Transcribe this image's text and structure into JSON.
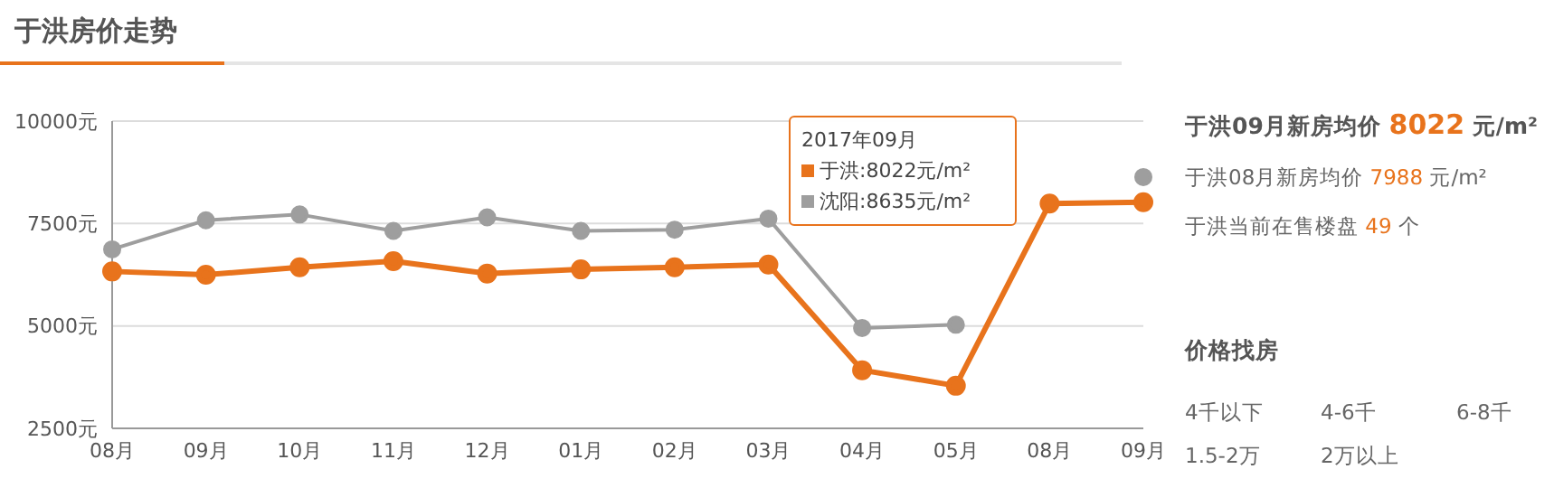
{
  "chart_data": {
    "type": "line",
    "title": "于洪房价走势",
    "categories": [
      "08月",
      "09月",
      "10月",
      "11月",
      "12月",
      "01月",
      "02月",
      "03月",
      "04月",
      "05月",
      "08月",
      "09月"
    ],
    "series": [
      {
        "name": "于洪",
        "color": "#e8731c",
        "values": [
          6330,
          6250,
          6430,
          6580,
          6280,
          6380,
          6430,
          6500,
          3920,
          3540,
          7988,
          8022
        ]
      },
      {
        "name": "沈阳",
        "color": "#9e9e9e",
        "values": [
          6870,
          7580,
          7720,
          7320,
          7650,
          7320,
          7350,
          7620,
          4950,
          5030,
          null,
          8635
        ]
      }
    ],
    "ylim": [
      2500,
      10000
    ],
    "yticks": [
      {
        "value": 2500,
        "label": "2500元"
      },
      {
        "value": 5000,
        "label": "5000元"
      },
      {
        "value": 7500,
        "label": "7500元"
      },
      {
        "value": 10000,
        "label": "10000元"
      }
    ],
    "grid": "y",
    "legend": "top right",
    "marker": "circle",
    "line_style": "solid",
    "annotations": [
      "2017年09月",
      ":8022元/m²",
      ":8635元/m²",
      "于洪09月新房均价",
      "8022",
      "元/m²",
      "于洪08月新房均价",
      "7988",
      "元/m²",
      "于洪当前在售楼盘",
      "49",
      "个",
      "价格找房",
      "4千以下",
      "4-6千",
      "6-8千",
      "1.5-2万",
      "2万以上"
    ]
  }
}
